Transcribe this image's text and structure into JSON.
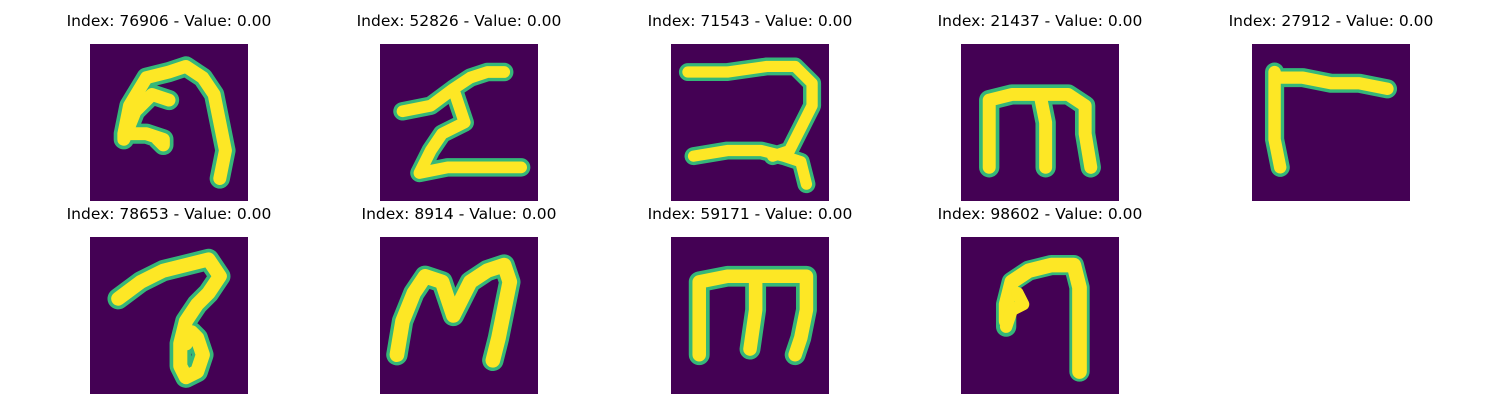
{
  "colors": {
    "background": "#440154",
    "stroke_core": "#fde725",
    "stroke_edge": "#35b779",
    "stroke_mid": "#b5de2b"
  },
  "figures": [
    {
      "label": "Index: 76906 - Value: 0.00",
      "glyph": "hook-nine"
    },
    {
      "label": "Index: 52826 - Value: 0.00",
      "glyph": "zigzag-sigma"
    },
    {
      "label": "Index: 71543 - Value: 0.00",
      "glyph": "two-curl"
    },
    {
      "label": "Index: 21437 - Value: 0.00",
      "glyph": "letter-m"
    },
    {
      "label": "Index: 27912 - Value: 0.00",
      "glyph": "letter-r"
    },
    {
      "label": "Index: 78653 - Value: 0.00",
      "glyph": "nine-loop"
    },
    {
      "label": "Index: 8914 - Value: 0.00",
      "glyph": "letter-m-cursive"
    },
    {
      "label": "Index: 59171 - Value: 0.00",
      "glyph": "letter-m-blocky"
    },
    {
      "label": "Index: 98602 - Value: 0.00",
      "glyph": "seven-hook"
    }
  ]
}
